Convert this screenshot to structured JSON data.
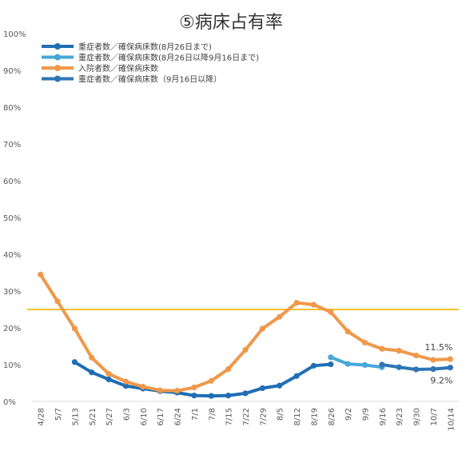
{
  "chart_data": {
    "type": "line",
    "title": "⑤病床占有率",
    "ylim": [
      0,
      100
    ],
    "yticks": [
      0,
      10,
      20,
      30,
      40,
      50,
      60,
      70,
      80,
      90,
      100
    ],
    "ytick_labels": [
      "0%",
      "10%",
      "20%",
      "30%",
      "40%",
      "50%",
      "60%",
      "70%",
      "80%",
      "90%",
      "100%"
    ],
    "categories": [
      "4/28",
      "5/7",
      "5/13",
      "5/21",
      "5/27",
      "6/3",
      "6/10",
      "6/17",
      "6/24",
      "7/1",
      "7/8",
      "7/15",
      "7/22",
      "7/29",
      "8/5",
      "8/12",
      "8/19",
      "8/26",
      "9/2",
      "9/9",
      "9/16",
      "9/23",
      "9/30",
      "10/7",
      "10/14"
    ],
    "grid": false,
    "legend_position": "top-left",
    "reference_line": {
      "value": 25,
      "color": "#f2c12e"
    },
    "series": [
      {
        "name": "重症者数／確保病床数(8月26日まで)",
        "color": "#1f6eb5",
        "values": [
          null,
          null,
          10.7,
          7.9,
          6.0,
          4.2,
          3.5,
          2.8,
          2.4,
          1.6,
          1.5,
          1.6,
          2.2,
          3.6,
          4.3,
          6.9,
          9.7,
          10.1,
          null,
          null,
          null,
          null,
          null,
          null,
          null
        ]
      },
      {
        "name": "重症者数／確保病床数(8月26日以降9月16日まで)",
        "color": "#46a8d8",
        "values": [
          null,
          null,
          null,
          null,
          null,
          null,
          null,
          null,
          null,
          null,
          null,
          null,
          null,
          null,
          null,
          null,
          null,
          12.0,
          10.2,
          9.9,
          9.3,
          null,
          null,
          null,
          null
        ]
      },
      {
        "name": "入院者数／確保病床数",
        "color": "#f0984a",
        "values": [
          34.5,
          27.2,
          19.8,
          11.9,
          7.5,
          5.4,
          4.0,
          3.0,
          2.9,
          3.8,
          5.6,
          8.8,
          14.0,
          19.8,
          23.0,
          26.8,
          26.3,
          24.3,
          19.0,
          16.0,
          14.3,
          13.8,
          12.5,
          11.3,
          11.5
        ]
      },
      {
        "name": "重症者数／確保病床数（9月16日以降）",
        "color": "#2e75b6",
        "values": [
          null,
          null,
          null,
          null,
          null,
          null,
          null,
          null,
          null,
          null,
          null,
          null,
          null,
          null,
          null,
          null,
          null,
          null,
          null,
          null,
          10.0,
          9.3,
          8.7,
          8.8,
          9.2
        ]
      }
    ],
    "annotations": [
      {
        "text": "11.5%",
        "series": 2,
        "index": 24
      },
      {
        "text": "9.2%",
        "series": 3,
        "index": 24
      }
    ]
  }
}
